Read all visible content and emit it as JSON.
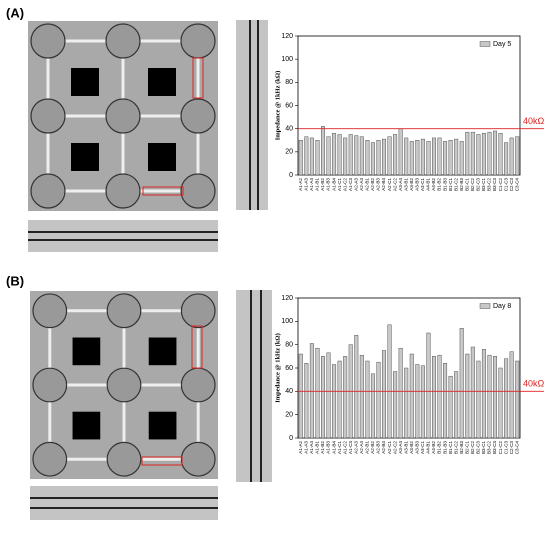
{
  "panel_labels": [
    "(A)",
    "(B)"
  ],
  "chart_data": [
    {
      "type": "bar",
      "y_label": "Impedance @ 1kHz (kΩ)",
      "categories": [
        "A1-A2",
        "A1-A3",
        "A1-A4",
        "A1-B1",
        "A1-B2",
        "A1-B3",
        "A1-B4",
        "A1-C1",
        "A1-C2",
        "A1-C3",
        "A2-A3",
        "A2-A4",
        "A2-B1",
        "A2-B2",
        "A2-B3",
        "A2-B4",
        "A2-C1",
        "A2-C2",
        "A3-A4",
        "A3-B1",
        "A3-B2",
        "A3-B3",
        "A3-C1",
        "A4-B1",
        "A4-B2",
        "B1-B2",
        "B1-B3",
        "B1-C1",
        "B1-C2",
        "B2-B3",
        "B2-C1",
        "B2-C2",
        "B2-C3",
        "B3-C1",
        "B3-C2",
        "B3-C3",
        "C1-C2",
        "C1-C3",
        "C2-C3",
        "C3-C4"
      ],
      "series": [
        {
          "name": "Day 5",
          "color": "#c8c8c8",
          "values": [
            30,
            33,
            32,
            30,
            42,
            33,
            36,
            35,
            32,
            35,
            34,
            33,
            30,
            28,
            30,
            31,
            33,
            35,
            40,
            32,
            29,
            30,
            31,
            29,
            32,
            32,
            29,
            30,
            31,
            29,
            37,
            37,
            35,
            36,
            37,
            38,
            36,
            28,
            32,
            33
          ]
        }
      ],
      "ylim": [
        0,
        120
      ],
      "yticks": [
        0,
        20,
        40,
        60,
        80,
        100,
        120
      ],
      "legend": "top-right",
      "reference": {
        "value": 40,
        "label": "40kΩ",
        "color": "#e02020"
      }
    },
    {
      "type": "bar",
      "y_label": "Impedance @ 1kHz (kΩ)",
      "categories": [
        "A1-A2",
        "A1-A3",
        "A1-A4",
        "A1-B1",
        "A1-B2",
        "A1-B3",
        "A1-B4",
        "A1-C1",
        "A1-C2",
        "A1-C3",
        "A2-A3",
        "A2-A4",
        "A2-B1",
        "A2-B2",
        "A2-B3",
        "A2-B4",
        "A2-C1",
        "A2-C2",
        "A3-A4",
        "A3-B1",
        "A3-B2",
        "A3-B3",
        "A3-C1",
        "A4-B1",
        "A4-B2",
        "B1-B2",
        "B1-B3",
        "B1-C1",
        "B1-C2",
        "B2-B3",
        "B2-C1",
        "B2-C2",
        "B2-C3",
        "B3-C1",
        "B3-C2",
        "B3-C3",
        "C1-C2",
        "C1-C3",
        "C2-C3",
        "C3-C4"
      ],
      "series": [
        {
          "name": "Day 8",
          "color": "#c8c8c8",
          "values": [
            72,
            64,
            81,
            77,
            70,
            73,
            63,
            66,
            70,
            80,
            88,
            71,
            66,
            55,
            65,
            75,
            97,
            57,
            77,
            60,
            72,
            63,
            62,
            90,
            70,
            71,
            64,
            53,
            57,
            94,
            72,
            78,
            66,
            76,
            71,
            70,
            60,
            68,
            74,
            66
          ]
        }
      ],
      "ylim": [
        0,
        120
      ],
      "yticks": [
        0,
        20,
        40,
        60,
        80,
        100,
        120
      ],
      "legend": "top-right",
      "reference": {
        "value": 40,
        "label": "40kΩ",
        "color": "#e02020"
      }
    }
  ]
}
